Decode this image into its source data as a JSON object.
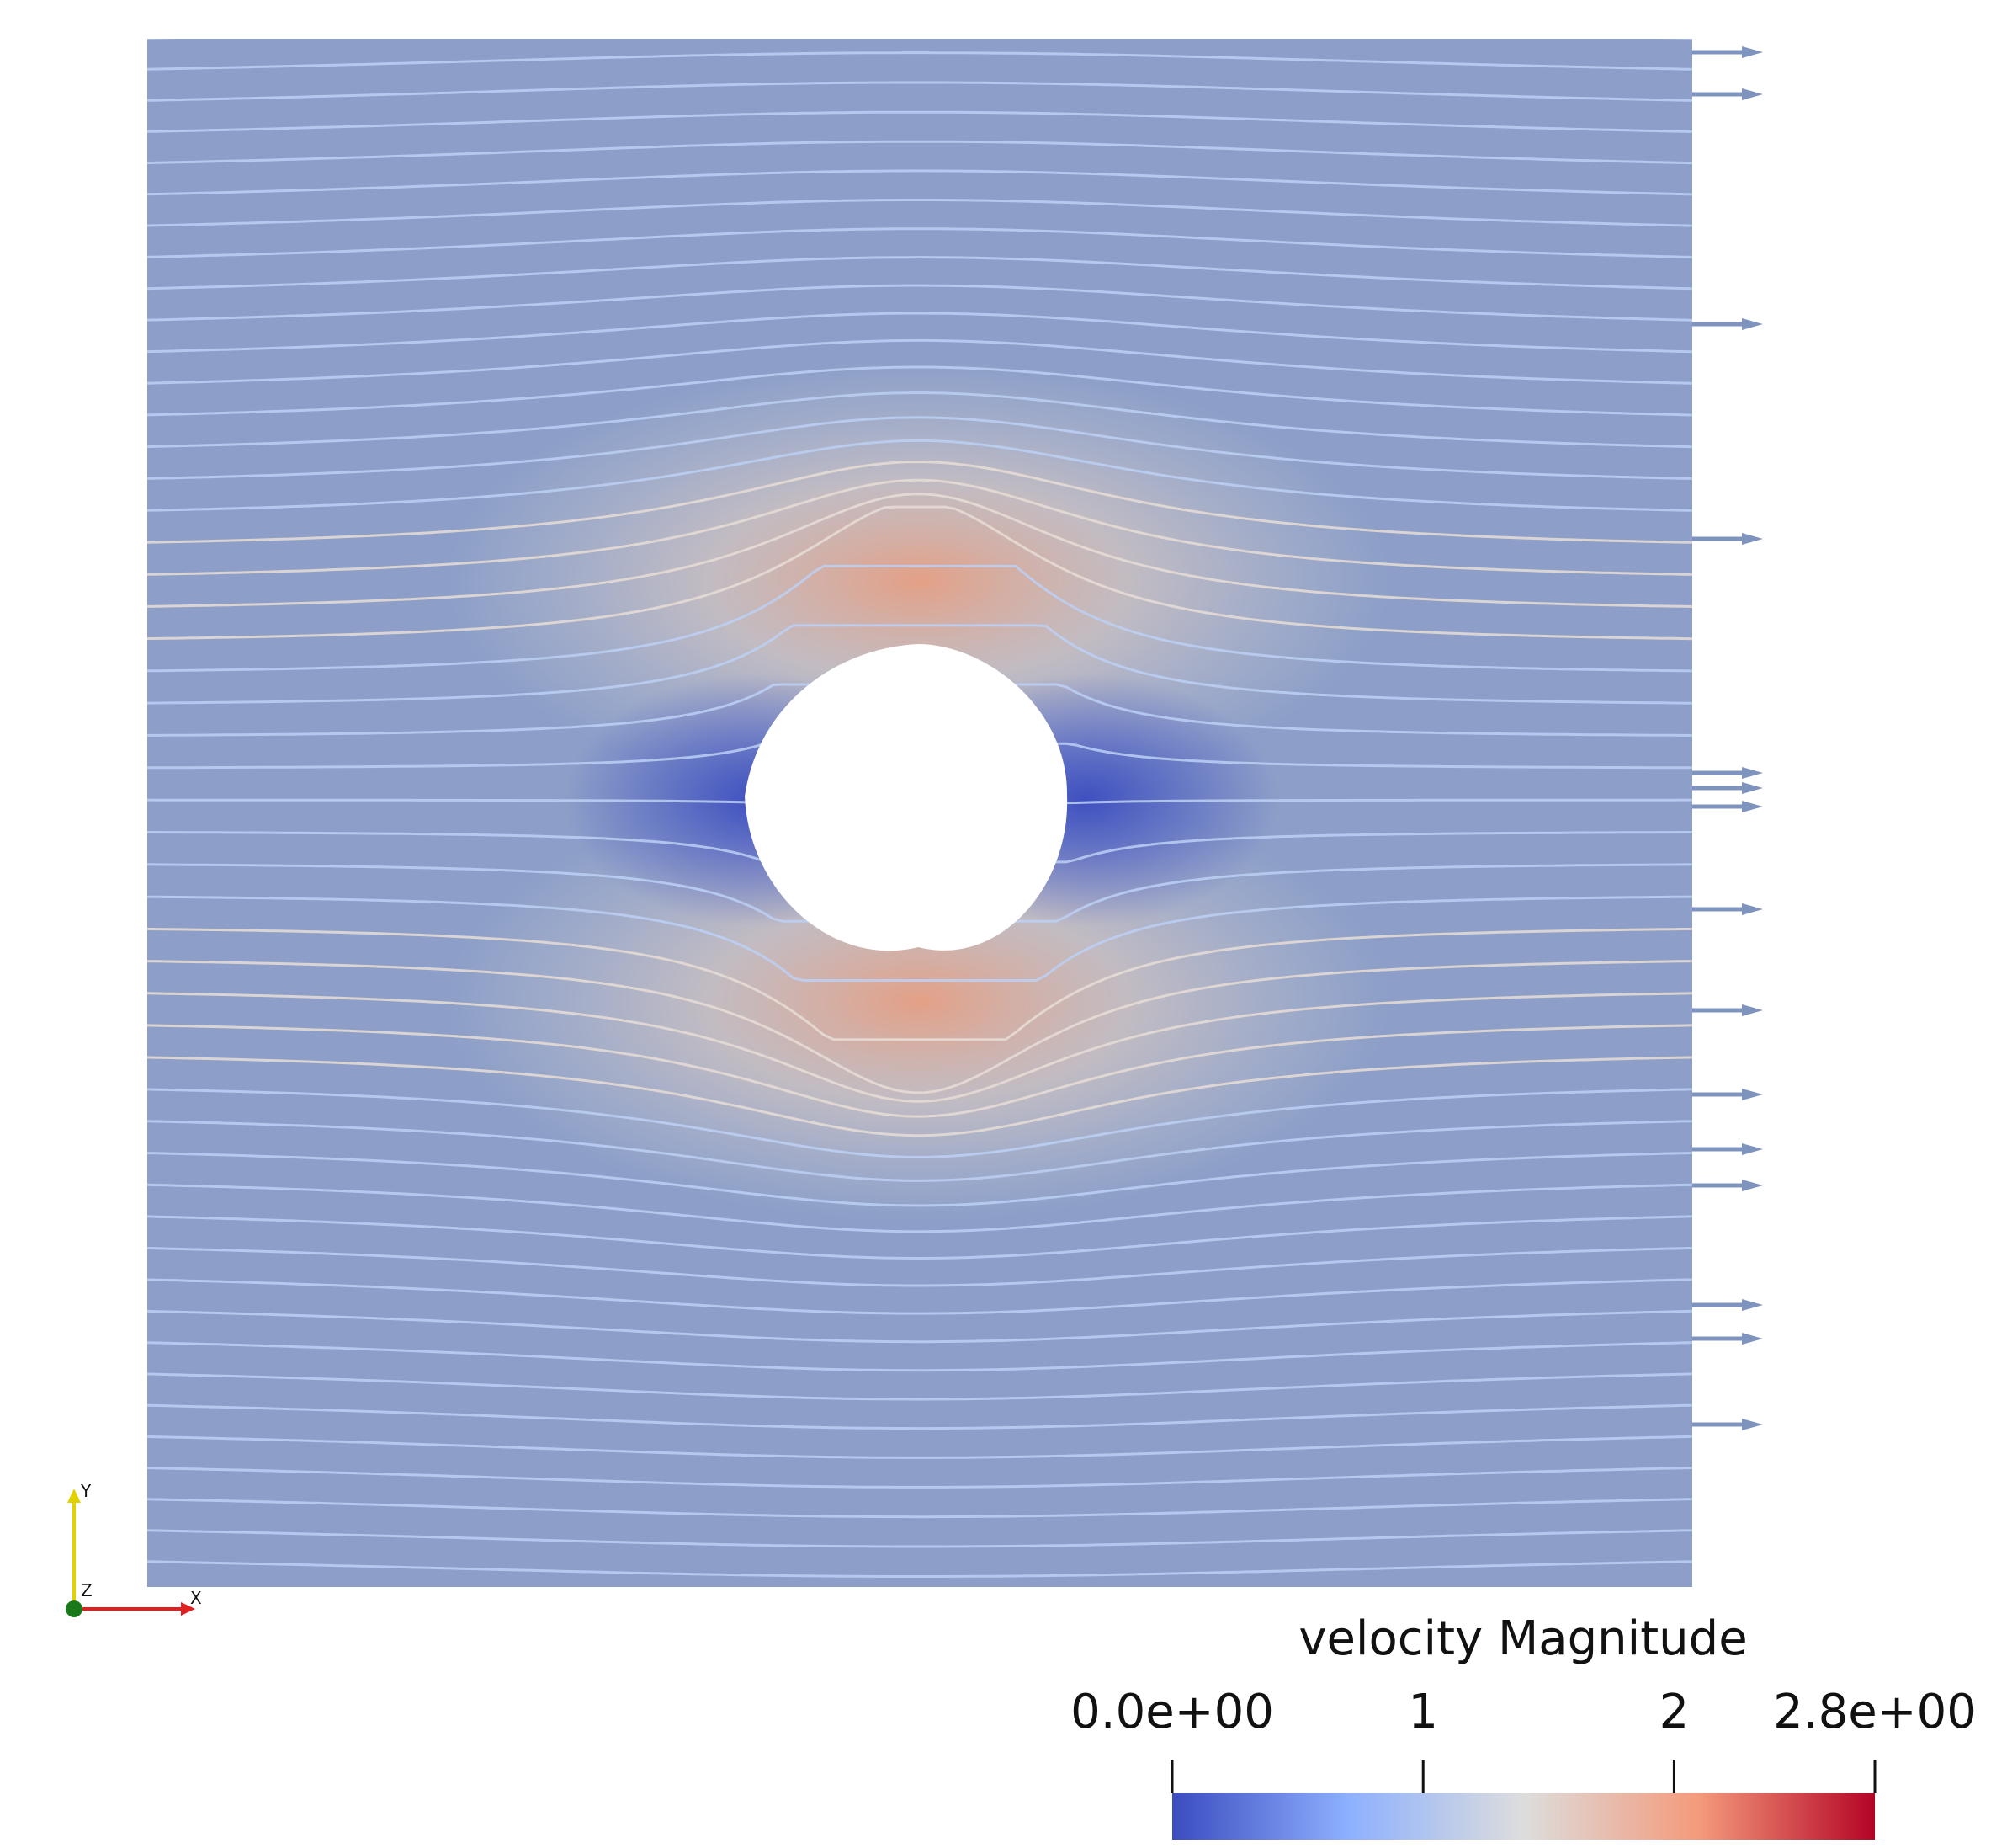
{
  "chart_data": {
    "type": "flow",
    "title": "velocity Magnitude",
    "clim": [
      0,
      2.8
    ],
    "cticks": [
      {
        "value": 0,
        "label": "0.0e+00"
      },
      1,
      2,
      {
        "value": 2.8,
        "label": "2.8e+00"
      }
    ],
    "colormap": [
      "#3b4cc0",
      "#8db0fe",
      "#dddddd",
      "#f49a7b",
      "#b40426"
    ],
    "orientation_axes": {
      "x": "X",
      "y": "Y",
      "z": "Z"
    }
  }
}
